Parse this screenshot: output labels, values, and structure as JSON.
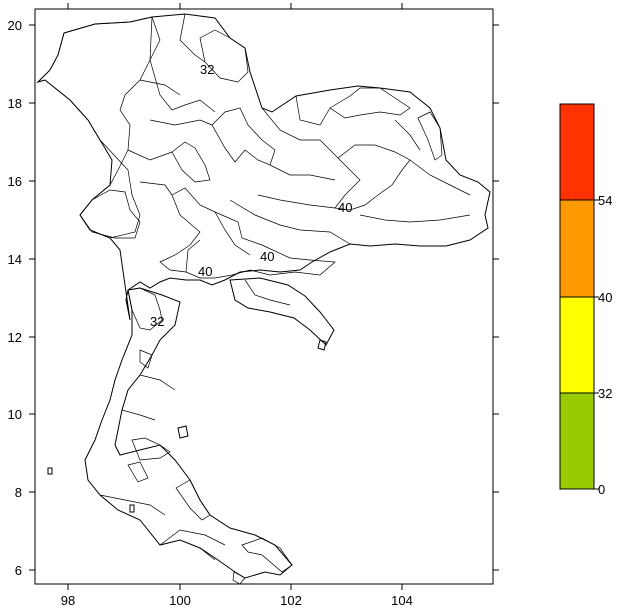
{
  "map": {
    "x_ticks": [
      "98",
      "100",
      "102",
      "104"
    ],
    "y_ticks": [
      "20",
      "18",
      "16",
      "14",
      "12",
      "10",
      "8",
      "6"
    ],
    "contour_labels": [
      "32",
      "40",
      "40",
      "40",
      "32"
    ],
    "colors": {
      "green": "#99cc00",
      "yellow": "#ffff00",
      "orange": "#ff9900",
      "red": "#ff3300"
    }
  },
  "colorbar": {
    "bins": [
      {
        "from": 0,
        "to": 32,
        "color": "#99cc00"
      },
      {
        "from": 32,
        "to": 40,
        "color": "#ffff00"
      },
      {
        "from": 40,
        "to": 54,
        "color": "#ff9900"
      },
      {
        "from": 54,
        "to": null,
        "color": "#ff3300"
      }
    ],
    "labels": [
      "54",
      "40",
      "32",
      "0"
    ]
  }
}
